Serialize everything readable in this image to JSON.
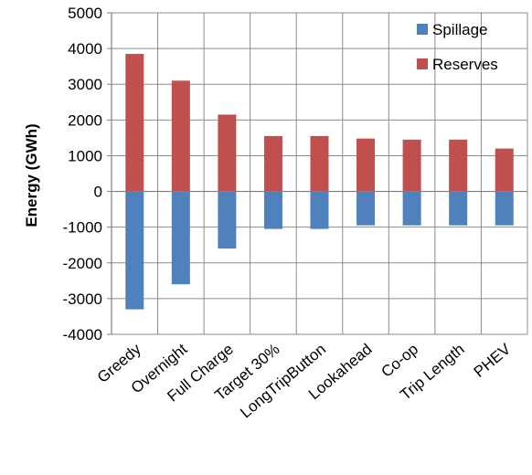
{
  "chart_data": {
    "type": "bar",
    "stacked": true,
    "title": "",
    "xlabel": "",
    "ylabel": "Energy (GWh)",
    "ylim": [
      -4000,
      5000
    ],
    "yticks": [
      5000,
      4000,
      3000,
      2000,
      1000,
      0,
      -1000,
      -2000,
      -3000,
      -4000
    ],
    "grid": true,
    "legend_position": "top-right",
    "categories": [
      "Greedy",
      "Overnight",
      "Full Charge",
      "Target 30%",
      "LongTripButton",
      "Lookahead",
      "Co-op",
      "Trip Length",
      "PHEV"
    ],
    "series": [
      {
        "name": "Spillage",
        "color": "#4f81bd",
        "values": [
          -3300,
          -2600,
          -1600,
          -1050,
          -1050,
          -950,
          -950,
          -950,
          -950
        ]
      },
      {
        "name": "Reserves",
        "color": "#c0504d",
        "values": [
          3850,
          3100,
          2150,
          1550,
          1550,
          1480,
          1450,
          1450,
          1200
        ]
      }
    ]
  }
}
